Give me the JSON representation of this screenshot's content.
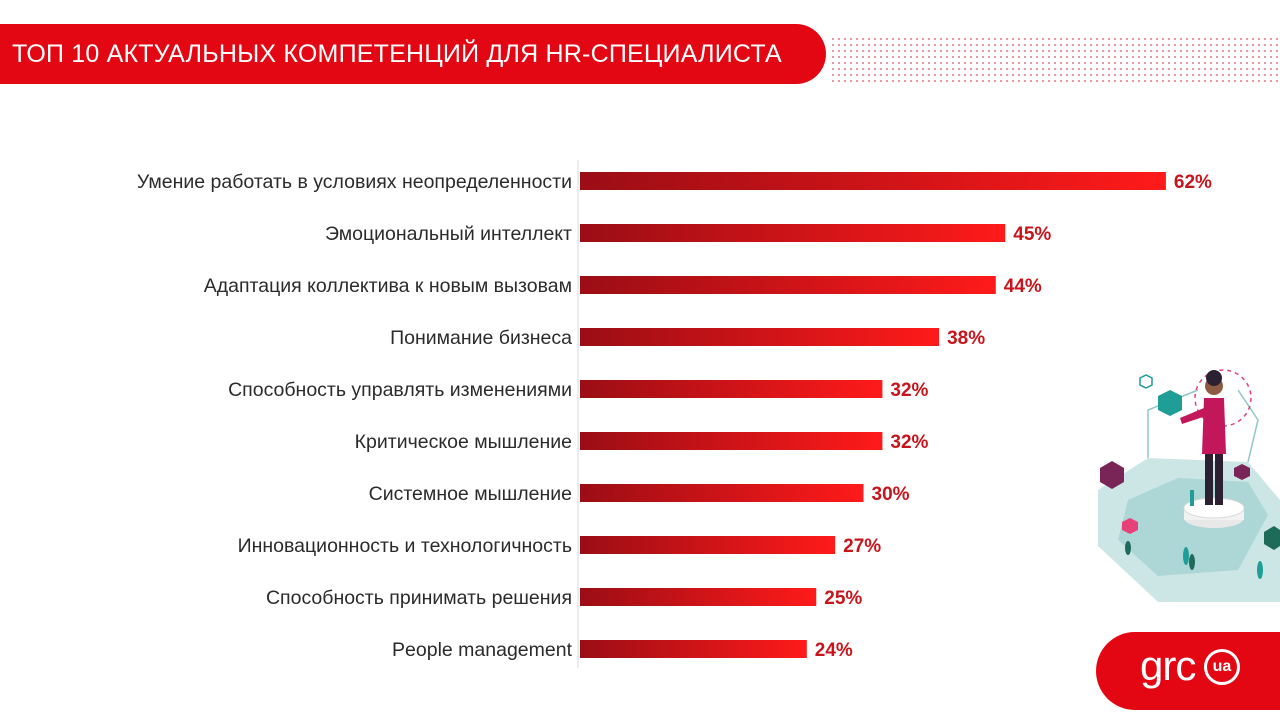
{
  "header": {
    "title": "ТОП 10 АКТУАЛЬНЫХ КОМПЕТЕНЦИЙ ДЛЯ HR-СПЕЦИАЛИСТА"
  },
  "chart_data": {
    "type": "bar",
    "orientation": "horizontal",
    "categories": [
      "Умение работать в условиях неопределенности",
      "Эмоциональный интеллект",
      "Адаптация коллектива к новым вызовам",
      "Понимание бизнеса",
      "Способность управлять изменениями",
      "Критическое мышление",
      "Системное мышление",
      "Инновационность и технологичность",
      "Способность принимать решения",
      "People management"
    ],
    "values": [
      62,
      45,
      44,
      38,
      32,
      32,
      30,
      27,
      25,
      24
    ],
    "value_labels": [
      "62%",
      "45%",
      "44%",
      "38%",
      "32%",
      "32%",
      "30%",
      "27%",
      "25%",
      "24%"
    ],
    "unit": "%",
    "grid": false,
    "colors": {
      "bar_start": "#9b0d15",
      "bar_end": "#ff1a1a",
      "value": "#c8141b"
    }
  },
  "logo": {
    "text": "grc",
    "badge": "ua"
  },
  "colors": {
    "accent": "#e30613"
  }
}
